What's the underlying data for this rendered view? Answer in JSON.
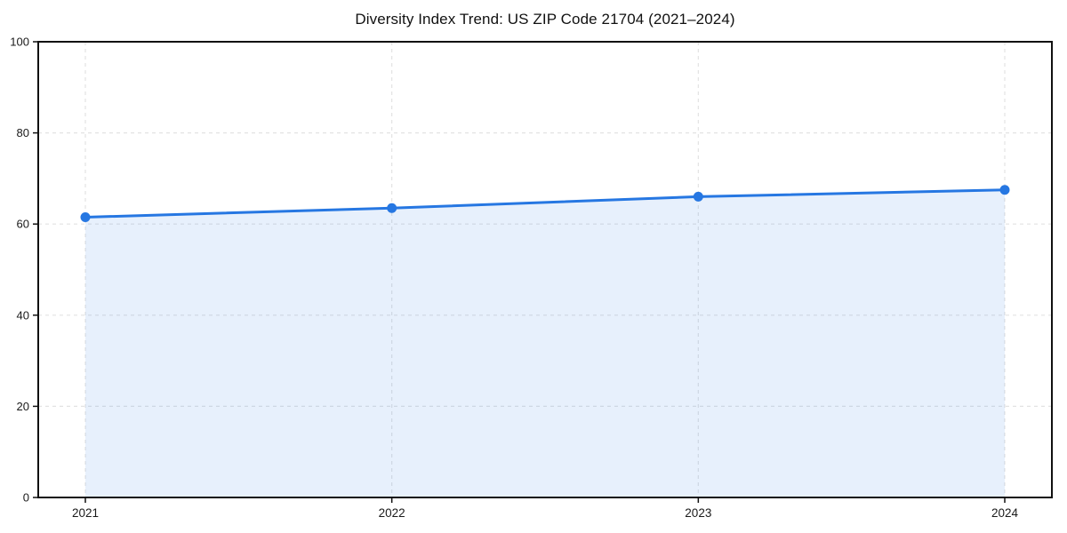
{
  "chart_data": {
    "type": "area",
    "title": "Diversity Index Trend: US ZIP Code 21704 (2021–2024)",
    "x": [
      "2021",
      "2022",
      "2023",
      "2024"
    ],
    "values": [
      61.5,
      63.5,
      66.0,
      67.5
    ],
    "xlabel": "",
    "ylabel": "",
    "ylim": [
      0,
      100
    ],
    "yticks": [
      0,
      20,
      40,
      60,
      80,
      100
    ],
    "grid": true,
    "legend": "none",
    "colors": {
      "line": "#2677e2",
      "marker": "#2677e2",
      "fill": "rgba(38, 119, 226, 0.11)",
      "grid": "#e3e3e3",
      "spine": "#111111",
      "tick_text": "#1a1a1a"
    }
  }
}
